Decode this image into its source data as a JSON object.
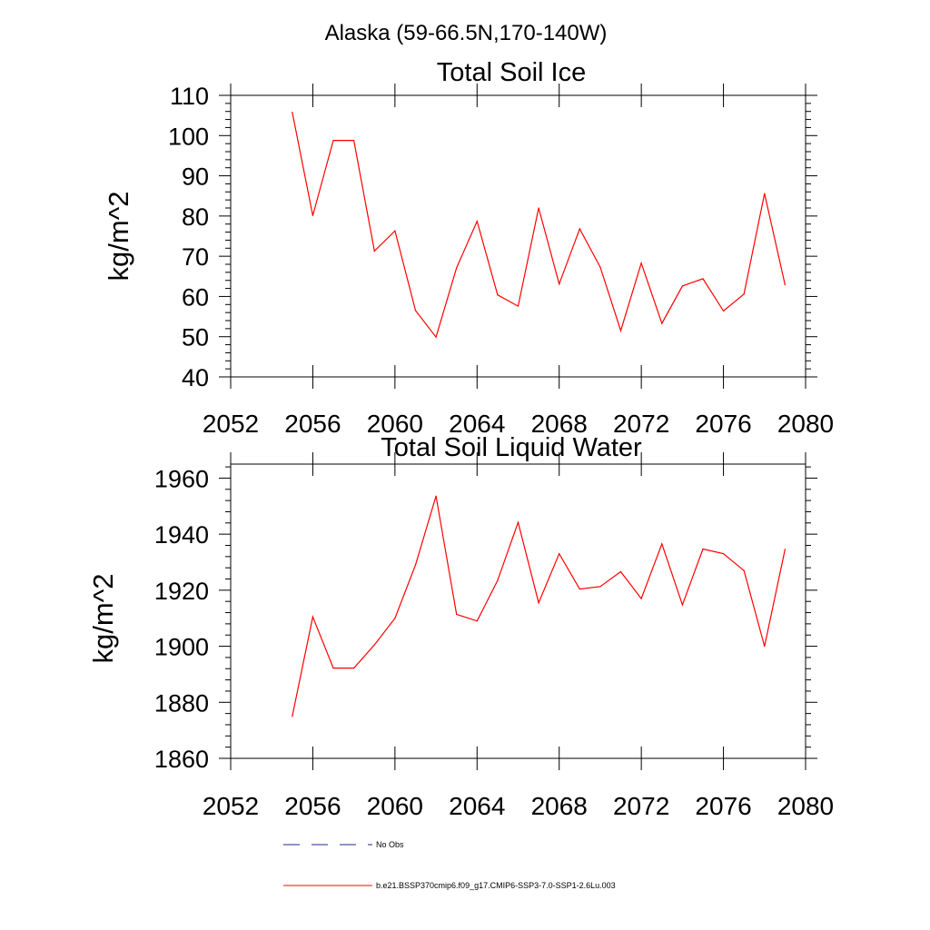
{
  "figure": {
    "main_title": "Alaska (59-66.5N,170-140W)"
  },
  "legend": {
    "entries": [
      {
        "label": "No Obs",
        "color": "#1f2a8c",
        "dash": true
      },
      {
        "label": "b.e21.BSSP370cmip6.f09_g17.CMIP6-SSP3-7.0-SSP1-2.6Lu.003",
        "color": "#ff0000",
        "dash": false
      }
    ]
  },
  "chart_data": [
    {
      "type": "line",
      "title": "Total Soil Ice",
      "xlabel": "",
      "ylabel": "kg/m^2",
      "xlim": [
        2052,
        2080
      ],
      "ylim": [
        40,
        110
      ],
      "x_ticks": [
        2052,
        2056,
        2060,
        2064,
        2068,
        2072,
        2076,
        2080
      ],
      "y_ticks": [
        40,
        50,
        60,
        70,
        80,
        90,
        100,
        110
      ],
      "grid": false,
      "series": [
        {
          "name": "b.e21.BSSP370cmip6.f09_g17.CMIP6-SSP3-7.0-SSP1-2.6Lu.003",
          "color": "#ff0000",
          "x": [
            2055,
            2056,
            2057,
            2058,
            2059,
            2060,
            2061,
            2062,
            2063,
            2064,
            2065,
            2066,
            2067,
            2068,
            2069,
            2070,
            2071,
            2072,
            2073,
            2074,
            2075,
            2076,
            2077,
            2078,
            2079
          ],
          "values": [
            105.8,
            80.1,
            98.8,
            98.8,
            71.3,
            76.3,
            56.5,
            49.9,
            67.1,
            78.7,
            60.4,
            57.6,
            82.0,
            63.1,
            76.8,
            67.3,
            51.5,
            68.3,
            53.3,
            62.6,
            64.4,
            56.4,
            60.6,
            85.6,
            62.9
          ]
        }
      ]
    },
    {
      "type": "line",
      "title": "Total Soil Liquid Water",
      "xlabel": "",
      "ylabel": "kg/m^2",
      "xlim": [
        2052,
        2080
      ],
      "ylim": [
        1860,
        1965
      ],
      "x_ticks": [
        2052,
        2056,
        2060,
        2064,
        2068,
        2072,
        2076,
        2080
      ],
      "y_ticks": [
        1860,
        1880,
        1900,
        1920,
        1940,
        1960
      ],
      "grid": false,
      "series": [
        {
          "name": "b.e21.BSSP370cmip6.f09_g17.CMIP6-SSP3-7.0-SSP1-2.6Lu.003",
          "color": "#ff0000",
          "x": [
            2055,
            2056,
            2057,
            2058,
            2059,
            2060,
            2061,
            2062,
            2063,
            2064,
            2065,
            2066,
            2067,
            2068,
            2069,
            2070,
            2071,
            2072,
            2073,
            2074,
            2075,
            2076,
            2077,
            2078,
            2079
          ],
          "values": [
            1875,
            1910.5,
            1892.2,
            1892.2,
            1900.5,
            1910,
            1929,
            1953.6,
            1911.4,
            1909,
            1923.5,
            1944.2,
            1915.5,
            1933,
            1920.4,
            1921.3,
            1926.6,
            1917,
            1936.5,
            1914.8,
            1934.7,
            1933,
            1927,
            1900,
            1934.6
          ]
        }
      ]
    }
  ]
}
